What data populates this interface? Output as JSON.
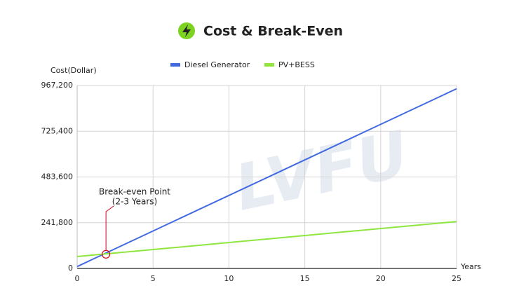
{
  "chart_data": {
    "type": "line",
    "title": "Cost & Break-Even",
    "ylabel": "Cost(Dollar)",
    "xlabel": "Years",
    "x": [
      0,
      25
    ],
    "series": [
      {
        "name": "Diesel Generator",
        "color": "#4169e1",
        "values": [
          10000,
          950000
        ]
      },
      {
        "name": "PV+BESS",
        "color": "#8ee63f",
        "values": [
          63000,
          248000
        ]
      }
    ],
    "xlim": [
      0,
      25
    ],
    "xticks": [
      0,
      5,
      10,
      15,
      20,
      25
    ],
    "ylim": [
      0,
      967200
    ],
    "yticks": [
      0,
      {
        "value": 241800,
        "label": "241,800"
      },
      {
        "value": 483600,
        "label": "483,600"
      },
      {
        "value": 725400,
        "label": "725,400"
      },
      {
        "value": 967200,
        "label": "967,200"
      }
    ],
    "grid": true,
    "annotation": {
      "lines": [
        "Break-even Point",
        "(2-3 Years)"
      ],
      "x": 1.9,
      "y": 75000,
      "color": "#d0021b"
    },
    "watermark": "LVFU"
  }
}
